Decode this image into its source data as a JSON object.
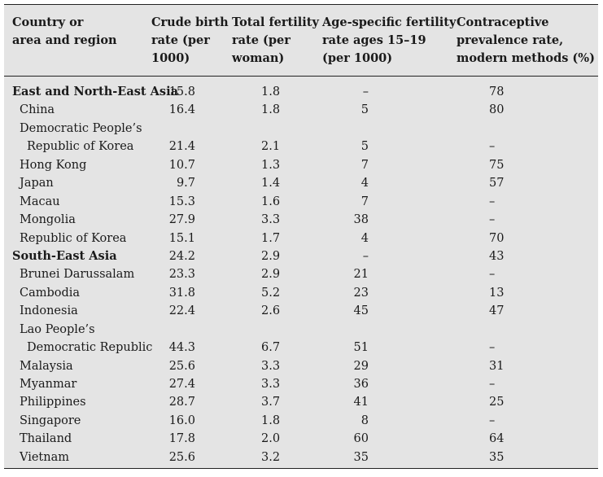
{
  "headers": {
    "country": "Country or\narea and region",
    "cbr": "Crude birth\nrate (per\n1000)",
    "tfr": "Total fertility\nrate (per\nwoman)",
    "asfr": "Age-specific fertility\nrate ages 15–19\n(per 1000)",
    "cpr": "Contraceptive\nprevalence rate,\nmodern methods (%)"
  },
  "rows": [
    {
      "name": "East and North-East Asia",
      "type": "region",
      "cbr": "15.8",
      "tfr": "1.8",
      "asfr": "–",
      "cpr": "78"
    },
    {
      "name": "China",
      "type": "country",
      "cbr": "16.4",
      "tfr": "1.8",
      "asfr": "5",
      "cpr": "80"
    },
    {
      "name": "Democratic People’s",
      "type": "country",
      "cbr": "",
      "tfr": "",
      "asfr": "",
      "cpr": ""
    },
    {
      "name": "Republic of Korea",
      "type": "cont",
      "cbr": "21.4",
      "tfr": "2.1",
      "asfr": "5",
      "cpr": "–"
    },
    {
      "name": "Hong Kong",
      "type": "country",
      "cbr": "10.7",
      "tfr": "1.3",
      "asfr": "7",
      "cpr": "75"
    },
    {
      "name": "Japan",
      "type": "country",
      "cbr": "9.7",
      "tfr": "1.4",
      "asfr": "4",
      "cpr": "57"
    },
    {
      "name": "Macau",
      "type": "country",
      "cbr": "15.3",
      "tfr": "1.6",
      "asfr": "7",
      "cpr": "–"
    },
    {
      "name": "Mongolia",
      "type": "country",
      "cbr": "27.9",
      "tfr": "3.3",
      "asfr": "38",
      "cpr": "–"
    },
    {
      "name": "Republic of Korea",
      "type": "country",
      "cbr": "15.1",
      "tfr": "1.7",
      "asfr": "4",
      "cpr": "70"
    },
    {
      "name": "South-East Asia",
      "type": "region",
      "cbr": "24.2",
      "tfr": "2.9",
      "asfr": "–",
      "cpr": "43"
    },
    {
      "name": "Brunei Darussalam",
      "type": "country",
      "cbr": "23.3",
      "tfr": "2.9",
      "asfr": "21",
      "cpr": "–"
    },
    {
      "name": "Cambodia",
      "type": "country",
      "cbr": "31.8",
      "tfr": "5.2",
      "asfr": "23",
      "cpr": "13"
    },
    {
      "name": "Indonesia",
      "type": "country",
      "cbr": "22.4",
      "tfr": "2.6",
      "asfr": "45",
      "cpr": "47"
    },
    {
      "name": "Lao People’s",
      "type": "country",
      "cbr": "",
      "tfr": "",
      "asfr": "",
      "cpr": ""
    },
    {
      "name": "Democratic  Republic",
      "type": "cont",
      "cbr": "44.3",
      "tfr": "6.7",
      "asfr": "51",
      "cpr": "–"
    },
    {
      "name": "Malaysia",
      "type": "country",
      "cbr": "25.6",
      "tfr": "3.3",
      "asfr": "29",
      "cpr": "31"
    },
    {
      "name": "Myanmar",
      "type": "country",
      "cbr": "27.4",
      "tfr": "3.3",
      "asfr": "36",
      "cpr": "–"
    },
    {
      "name": "Philippines",
      "type": "country",
      "cbr": "28.7",
      "tfr": "3.7",
      "asfr": "41",
      "cpr": "25"
    },
    {
      "name": "Singapore",
      "type": "country",
      "cbr": "16.0",
      "tfr": "1.8",
      "asfr": "8",
      "cpr": "–"
    },
    {
      "name": "Thailand",
      "type": "country",
      "cbr": "17.8",
      "tfr": "2.0",
      "asfr": "60",
      "cpr": "64"
    },
    {
      "name": "Vietnam",
      "type": "country",
      "cbr": "25.6",
      "tfr": "3.2",
      "asfr": "35",
      "cpr": "35"
    }
  ]
}
